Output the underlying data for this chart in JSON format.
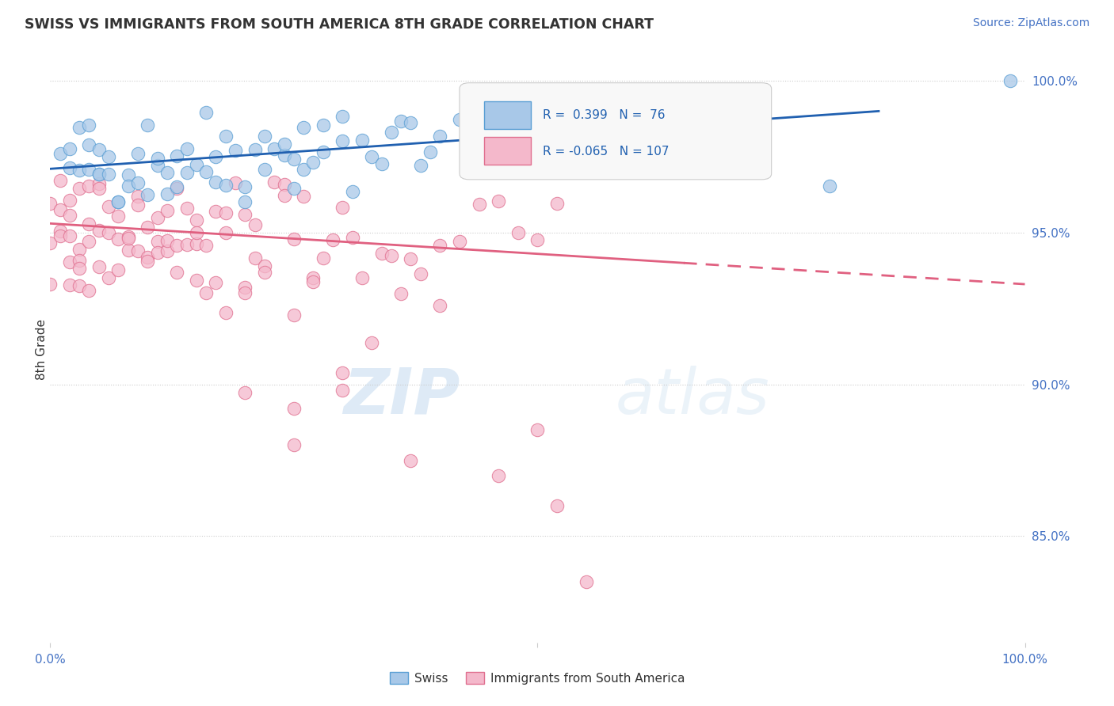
{
  "title": "SWISS VS IMMIGRANTS FROM SOUTH AMERICA 8TH GRADE CORRELATION CHART",
  "source": "Source: ZipAtlas.com",
  "ylabel": "8th Grade",
  "ylim": [
    0.815,
    1.008
  ],
  "xlim": [
    0.0,
    1.0
  ],
  "R_swiss": 0.399,
  "N_swiss": 76,
  "R_immigrants": -0.065,
  "N_immigrants": 107,
  "color_swiss": "#a8c8e8",
  "color_immigrants": "#f4b8cb",
  "edge_swiss": "#5a9fd4",
  "edge_immigrants": "#e07090",
  "trendline_swiss_color": "#2060b0",
  "trendline_immigrants_color": "#e06080",
  "background_color": "#ffffff",
  "grid_color": "#cccccc",
  "tick_color": "#4472c4",
  "title_color": "#333333",
  "source_color": "#4472c4",
  "ytick_vals": [
    1.0,
    0.95,
    0.9,
    0.85
  ],
  "ytick_labels": [
    "100.0%",
    "95.0%",
    "90.0%",
    "85.0%"
  ]
}
